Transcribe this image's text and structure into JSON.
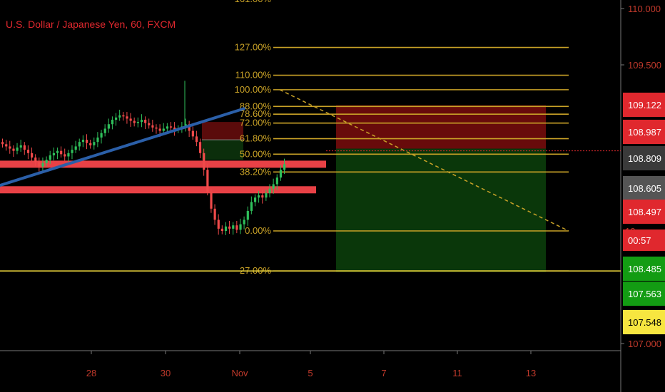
{
  "chart_data": {
    "type": "candlestick",
    "title": "U.S. Dollar / Japanese Yen, 60, FXCM",
    "y_axis": {
      "range": [
        107.0,
        110.0
      ],
      "ticks": [
        "110.000",
        "109.500",
        "107.000"
      ],
      "partial_tick": "10"
    },
    "x_axis": {
      "ticks": [
        "28",
        "30",
        "Nov",
        "5",
        "7",
        "11",
        "13"
      ]
    },
    "price_tags": [
      {
        "value": 109.122,
        "label": "109.122",
        "bg": "#e0282e",
        "fg": "#ffffff"
      },
      {
        "value": 108.987,
        "label": "108.987",
        "bg": "#e0282e",
        "fg": "#ffffff"
      },
      {
        "value": 108.809,
        "label": "108.809",
        "bg": "#3a3a3a",
        "fg": "#ffffff"
      },
      {
        "value": 108.605,
        "label": "108.605",
        "bg": "#555555",
        "fg": "#ffffff"
      },
      {
        "value": 108.497,
        "label": "108.497",
        "bg": "#e0282e",
        "fg": "#ffffff"
      },
      {
        "value": 108.3,
        "label": "00:57",
        "bg": "#e0282e",
        "fg": "#ffffff"
      },
      {
        "value": 108.1,
        "label": "108.485",
        "bg": "#139c13",
        "fg": "#ffffff"
      },
      {
        "value": 107.9,
        "label": "107.563",
        "bg": "#139c13",
        "fg": "#ffffff"
      },
      {
        "value": 107.66,
        "label": "107.548",
        "bg": "#f7e640",
        "fg": "#000000"
      }
    ],
    "fib_levels": [
      {
        "label": "127.00%",
        "value": 109.65
      },
      {
        "label": "110.00%",
        "value": 109.4
      },
      {
        "label": "100.00%",
        "value": 109.27
      },
      {
        "label": "88.00%",
        "value": 109.12
      },
      {
        "label": "78.60%",
        "value": 109.05
      },
      {
        "label": "72.00%",
        "value": 108.97
      },
      {
        "label": "61.80%",
        "value": 108.83
      },
      {
        "label": "50.00%",
        "value": 108.69
      },
      {
        "label": "38.20%",
        "value": 108.53
      },
      {
        "label": "0.00%",
        "value": 108.0
      },
      {
        "label": "27.00%",
        "value": 107.64
      }
    ],
    "top_partial_label": "161.00%",
    "horizontal_zones": [
      {
        "name": "resistance",
        "value": 108.6,
        "color": "#f4454a"
      },
      {
        "name": "support",
        "value": 108.37,
        "color": "#f4454a"
      }
    ],
    "trendline": {
      "from": [
        0.0,
        108.41
      ],
      "to": [
        342.0,
        109.1
      ],
      "color": "#2b5fa8"
    },
    "position_box": {
      "entry": 108.74,
      "stop": 109.13,
      "target": 107.63,
      "colors": {
        "stop": "#7a0d0d",
        "target": "#0b3d0b"
      }
    },
    "small_box": {
      "entry": 108.82,
      "stop": 108.98,
      "target": 108.64
    },
    "dashed_projection": {
      "from": 109.27,
      "to": 108.0,
      "color": "#c9a227"
    },
    "current_price": 108.605,
    "colors": {
      "up": "#2fbf5b",
      "down": "#f04a4a",
      "fib": "#c9a227",
      "axis_text": "#c0392b",
      "title": "#e0282e"
    },
    "candles_close": [
      108.78,
      108.76,
      108.74,
      108.72,
      108.75,
      108.77,
      108.73,
      108.7,
      108.66,
      108.62,
      108.58,
      108.61,
      108.64,
      108.68,
      108.7,
      108.72,
      108.69,
      108.67,
      108.7,
      108.73,
      108.76,
      108.8,
      108.82,
      108.79,
      108.77,
      108.8,
      108.84,
      108.88,
      108.92,
      108.96,
      109.0,
      109.02,
      109.04,
      109.03,
      109.01,
      108.99,
      108.97,
      108.98,
      109.0,
      108.97,
      108.95,
      108.93,
      108.92,
      108.9,
      108.92,
      108.94,
      108.93,
      108.91,
      108.92,
      108.94,
      108.96,
      108.9,
      108.85,
      108.8,
      108.7,
      108.55,
      108.35,
      108.2,
      108.1,
      108.02,
      108.0,
      108.04,
      108.02,
      108.05,
      108.01,
      108.06,
      108.1,
      108.18,
      108.26,
      108.3,
      108.32,
      108.3,
      108.34,
      108.38,
      108.42,
      108.48,
      108.55,
      108.6
    ]
  }
}
